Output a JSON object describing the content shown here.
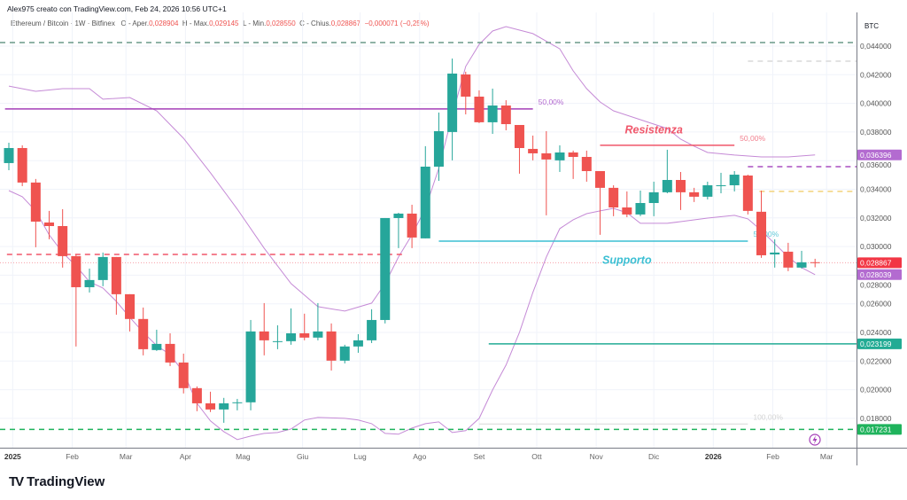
{
  "header": {
    "credit": "Alex975 creato con TradingView.com, Feb 24, 2026 10:56 UTC+1",
    "symbol": "Ethereum / Bitcoin · 1W · Bitfinex",
    "open_label": "O - Aper.",
    "open": "0,028904",
    "high_label": "H - Max.",
    "high": "0,029145",
    "low_label": "L - Min.",
    "low": "0,028550",
    "close_label": "C - Chius.",
    "close": "0,028867",
    "change": "−0,000071 (−0,25%)"
  },
  "logo": {
    "text": "TradingView"
  },
  "colors": {
    "up": "#26a69a",
    "down": "#ef5350",
    "band": "#c58ad6",
    "grid": "#f0f3fa"
  },
  "chart_data": {
    "type": "candlestick",
    "title": "",
    "currency_label": "BTC",
    "ylim": [
      0.0165,
      0.0455
    ],
    "y_ticks": [
      0.044,
      0.042,
      0.04,
      0.038,
      0.036,
      0.034,
      0.032,
      0.03,
      0.028,
      0.026,
      0.024,
      0.022,
      0.02,
      0.018
    ],
    "y_tick_labels": [
      "0,044000",
      "0,042000",
      "0,040000",
      "0,038000",
      "0,036000",
      "0,034000",
      "0,032000",
      "0,030000",
      "0,028000",
      "0,026000",
      "0,024000",
      "0,022000",
      "0,020000",
      "0,018000"
    ],
    "x_ticks": [
      {
        "date": "2025-01-01",
        "label": "2025",
        "bold": true
      },
      {
        "date": "2025-02-01",
        "label": "Feb"
      },
      {
        "date": "2025-03-01",
        "label": "Mar"
      },
      {
        "date": "2025-04-01",
        "label": "Apr"
      },
      {
        "date": "2025-05-01",
        "label": "Mag"
      },
      {
        "date": "2025-06-01",
        "label": "Giu"
      },
      {
        "date": "2025-07-01",
        "label": "Lug"
      },
      {
        "date": "2025-08-01",
        "label": "Ago"
      },
      {
        "date": "2025-09-01",
        "label": "Set"
      },
      {
        "date": "2025-10-01",
        "label": "Ott"
      },
      {
        "date": "2025-11-01",
        "label": "Nov"
      },
      {
        "date": "2025-12-01",
        "label": "Dic"
      },
      {
        "date": "2026-01-01",
        "label": "2026",
        "bold": true
      },
      {
        "date": "2026-02-01",
        "label": "Feb"
      },
      {
        "date": "2026-03-01",
        "label": "Mar"
      }
    ],
    "candles_fields": [
      "date",
      "open",
      "high",
      "low",
      "close"
    ],
    "candles": [
      [
        "2024-12-30",
        0.03583,
        0.03725,
        0.03533,
        0.03688
      ],
      [
        "2025-01-06",
        0.03688,
        0.03707,
        0.03422,
        0.03447
      ],
      [
        "2025-01-13",
        0.03447,
        0.03472,
        0.02995,
        0.03174
      ],
      [
        "2025-01-20",
        0.03168,
        0.03249,
        0.03051,
        0.03143
      ],
      [
        "2025-01-27",
        0.03143,
        0.03261,
        0.02853,
        0.02933
      ],
      [
        "2025-02-03",
        0.02933,
        0.02945,
        0.02302,
        0.02716
      ],
      [
        "2025-02-10",
        0.02716,
        0.02846,
        0.02679,
        0.02766
      ],
      [
        "2025-02-17",
        0.02766,
        0.02958,
        0.02723,
        0.02927
      ],
      [
        "2025-02-24",
        0.02927,
        0.02927,
        0.02524,
        0.02667
      ],
      [
        "2025-03-03",
        0.02667,
        0.02667,
        0.02407,
        0.02494
      ],
      [
        "2025-03-10",
        0.02494,
        0.02574,
        0.0224,
        0.02283
      ],
      [
        "2025-03-17",
        0.02277,
        0.02419,
        0.02271,
        0.0232
      ],
      [
        "2025-03-24",
        0.0232,
        0.02394,
        0.02165,
        0.0219
      ],
      [
        "2025-03-31",
        0.0219,
        0.02252,
        0.01974,
        0.02011
      ],
      [
        "2025-04-07",
        0.02011,
        0.02023,
        0.0185,
        0.01905
      ],
      [
        "2025-04-14",
        0.01905,
        0.01986,
        0.01844,
        0.01862
      ],
      [
        "2025-04-21",
        0.01862,
        0.01943,
        0.01769,
        0.01905
      ],
      [
        "2025-04-28",
        0.01909,
        0.01936,
        0.01856,
        0.01912
      ],
      [
        "2025-05-05",
        0.01912,
        0.02487,
        0.01856,
        0.02407
      ],
      [
        "2025-05-12",
        0.02407,
        0.02605,
        0.0224,
        0.02345
      ],
      [
        "2025-05-19",
        0.02339,
        0.0245,
        0.02283,
        0.02339
      ],
      [
        "2025-05-26",
        0.02339,
        0.02568,
        0.02314,
        0.02394
      ],
      [
        "2025-06-02",
        0.02394,
        0.02531,
        0.02345,
        0.02364
      ],
      [
        "2025-06-09",
        0.02364,
        0.02605,
        0.02345,
        0.02407
      ],
      [
        "2025-06-16",
        0.02407,
        0.02463,
        0.02134,
        0.02203
      ],
      [
        "2025-06-23",
        0.02203,
        0.02314,
        0.02184,
        0.02302
      ],
      [
        "2025-06-30",
        0.02302,
        0.02388,
        0.02258,
        0.02345
      ],
      [
        "2025-07-07",
        0.02345,
        0.02562,
        0.02326,
        0.02487
      ],
      [
        "2025-07-14",
        0.02487,
        0.03199,
        0.02463,
        0.03199
      ],
      [
        "2025-07-21",
        0.03199,
        0.03236,
        0.02989,
        0.0323
      ],
      [
        "2025-07-28",
        0.0323,
        0.03292,
        0.02989,
        0.03063
      ],
      [
        "2025-08-04",
        0.03057,
        0.03701,
        0.03057,
        0.03558
      ],
      [
        "2025-08-11",
        0.03558,
        0.03936,
        0.03459,
        0.03806
      ],
      [
        "2025-08-18",
        0.038,
        0.04313,
        0.03602,
        0.04208
      ],
      [
        "2025-08-25",
        0.04202,
        0.04221,
        0.03923,
        0.04047
      ],
      [
        "2025-09-01",
        0.04047,
        0.04091,
        0.03862,
        0.03868
      ],
      [
        "2025-09-08",
        0.03868,
        0.04103,
        0.03787,
        0.03985
      ],
      [
        "2025-09-15",
        0.03985,
        0.04022,
        0.03812,
        0.03855
      ],
      [
        "2025-09-22",
        0.03849,
        0.03849,
        0.03509,
        0.03688
      ],
      [
        "2025-09-29",
        0.03682,
        0.03775,
        0.03602,
        0.03651
      ],
      [
        "2025-10-06",
        0.03651,
        0.03806,
        0.03218,
        0.03608
      ],
      [
        "2025-10-13",
        0.03602,
        0.03707,
        0.03521,
        0.03657
      ],
      [
        "2025-10-20",
        0.03657,
        0.0367,
        0.03472,
        0.03626
      ],
      [
        "2025-10-27",
        0.03626,
        0.0367,
        0.03453,
        0.03527
      ],
      [
        "2025-11-03",
        0.03527,
        0.03527,
        0.03082,
        0.0341
      ],
      [
        "2025-11-10",
        0.0341,
        0.03428,
        0.03212,
        0.03273
      ],
      [
        "2025-11-17",
        0.03273,
        0.03385,
        0.03205,
        0.03224
      ],
      [
        "2025-11-24",
        0.03224,
        0.03391,
        0.03212,
        0.03304
      ],
      [
        "2025-12-01",
        0.03304,
        0.03453,
        0.03212,
        0.03379
      ],
      [
        "2025-12-08",
        0.03379,
        0.03676,
        0.03372,
        0.03465
      ],
      [
        "2025-12-15",
        0.03465,
        0.03521,
        0.03255,
        0.03379
      ],
      [
        "2025-12-22",
        0.03379,
        0.0341,
        0.03311,
        0.03348
      ],
      [
        "2025-12-29",
        0.03348,
        0.03453,
        0.03329,
        0.03428
      ],
      [
        "2026-01-05",
        0.03428,
        0.03515,
        0.03372,
        0.03428
      ],
      [
        "2026-01-12",
        0.03428,
        0.03527,
        0.03385,
        0.03502
      ],
      [
        "2026-01-19",
        0.03496,
        0.03502,
        0.03224,
        0.03249
      ],
      [
        "2026-01-26",
        0.03243,
        0.03391,
        0.02921,
        0.02939
      ],
      [
        "2026-02-02",
        0.02945,
        0.03051,
        0.02853,
        0.02958
      ],
      [
        "2026-02-09",
        0.02964,
        0.03026,
        0.02828,
        0.02853
      ],
      [
        "2026-02-16",
        0.02853,
        0.0297,
        0.02846,
        0.0289
      ],
      [
        "2026-02-23",
        0.028904,
        0.029145,
        0.02855,
        0.028867
      ]
    ],
    "bollinger_upper": [
      [
        "2024-12-30",
        0.04121
      ],
      [
        "2025-01-13",
        0.04084
      ],
      [
        "2025-01-27",
        0.04103
      ],
      [
        "2025-02-10",
        0.04103
      ],
      [
        "2025-02-17",
        0.04029
      ],
      [
        "2025-03-03",
        0.04041
      ],
      [
        "2025-03-17",
        0.03948
      ],
      [
        "2025-03-31",
        0.03756
      ],
      [
        "2025-04-14",
        0.03515
      ],
      [
        "2025-04-28",
        0.03261
      ],
      [
        "2025-05-12",
        0.02989
      ],
      [
        "2025-05-26",
        0.02741
      ],
      [
        "2025-06-09",
        0.0258
      ],
      [
        "2025-06-23",
        0.02549
      ],
      [
        "2025-07-07",
        0.02605
      ],
      [
        "2025-07-14",
        0.02741
      ],
      [
        "2025-07-21",
        0.02927
      ],
      [
        "2025-07-28",
        0.03082
      ],
      [
        "2025-08-04",
        0.03267
      ],
      [
        "2025-08-11",
        0.03546
      ],
      [
        "2025-08-18",
        0.03917
      ],
      [
        "2025-08-25",
        0.04258
      ],
      [
        "2025-09-01",
        0.04412
      ],
      [
        "2025-09-08",
        0.04505
      ],
      [
        "2025-09-15",
        0.04536
      ],
      [
        "2025-09-29",
        0.04487
      ],
      [
        "2025-10-13",
        0.04381
      ],
      [
        "2025-10-20",
        0.04227
      ],
      [
        "2025-10-27",
        0.04103
      ],
      [
        "2025-11-03",
        0.0401
      ],
      [
        "2025-11-10",
        0.03948
      ],
      [
        "2025-11-24",
        0.03886
      ],
      [
        "2025-12-08",
        0.03824
      ],
      [
        "2025-12-15",
        0.0375
      ],
      [
        "2025-12-22",
        0.03701
      ],
      [
        "2025-12-29",
        0.03657
      ],
      [
        "2026-01-12",
        0.03639
      ],
      [
        "2026-01-26",
        0.03626
      ],
      [
        "2026-02-09",
        0.03626
      ],
      [
        "2026-02-23",
        0.036396
      ]
    ],
    "bollinger_lower": [
      [
        "2024-12-30",
        0.03391
      ],
      [
        "2025-01-06",
        0.03348
      ],
      [
        "2025-01-13",
        0.03249
      ],
      [
        "2025-01-20",
        0.03082
      ],
      [
        "2025-01-27",
        0.02958
      ],
      [
        "2025-02-03",
        0.02865
      ],
      [
        "2025-02-10",
        0.02754
      ],
      [
        "2025-02-17",
        0.0271
      ],
      [
        "2025-02-24",
        0.02617
      ],
      [
        "2025-03-03",
        0.02506
      ],
      [
        "2025-03-10",
        0.02401
      ],
      [
        "2025-03-17",
        0.02308
      ],
      [
        "2025-03-24",
        0.02246
      ],
      [
        "2025-03-31",
        0.02122
      ],
      [
        "2025-04-07",
        0.01905
      ],
      [
        "2025-04-14",
        0.01782
      ],
      [
        "2025-04-21",
        0.01707
      ],
      [
        "2025-04-28",
        0.01652
      ],
      [
        "2025-05-05",
        0.01676
      ],
      [
        "2025-05-12",
        0.01695
      ],
      [
        "2025-05-19",
        0.01701
      ],
      [
        "2025-05-26",
        0.01726
      ],
      [
        "2025-06-02",
        0.01788
      ],
      [
        "2025-06-09",
        0.01806
      ],
      [
        "2025-06-23",
        0.018
      ],
      [
        "2025-06-30",
        0.01788
      ],
      [
        "2025-07-07",
        0.01763
      ],
      [
        "2025-07-14",
        0.01695
      ],
      [
        "2025-07-21",
        0.01689
      ],
      [
        "2025-07-28",
        0.01732
      ],
      [
        "2025-08-04",
        0.01763
      ],
      [
        "2025-08-11",
        0.01775
      ],
      [
        "2025-08-18",
        0.01701
      ],
      [
        "2025-08-25",
        0.01714
      ],
      [
        "2025-09-01",
        0.018
      ],
      [
        "2025-09-08",
        0.01998
      ],
      [
        "2025-09-15",
        0.02172
      ],
      [
        "2025-09-22",
        0.02401
      ],
      [
        "2025-09-29",
        0.02679
      ],
      [
        "2025-10-06",
        0.02927
      ],
      [
        "2025-10-13",
        0.03125
      ],
      [
        "2025-10-20",
        0.03187
      ],
      [
        "2025-10-27",
        0.0323
      ],
      [
        "2025-11-03",
        0.03249
      ],
      [
        "2025-11-10",
        0.03267
      ],
      [
        "2025-11-17",
        0.03236
      ],
      [
        "2025-11-24",
        0.03162
      ],
      [
        "2025-12-08",
        0.03162
      ],
      [
        "2025-12-15",
        0.03174
      ],
      [
        "2025-12-29",
        0.03199
      ],
      [
        "2026-01-12",
        0.03218
      ],
      [
        "2026-01-19",
        0.03193
      ],
      [
        "2026-01-26",
        0.03113
      ],
      [
        "2026-02-02",
        0.0302
      ],
      [
        "2026-02-09",
        0.02927
      ],
      [
        "2026-02-16",
        0.02853
      ],
      [
        "2026-02-23",
        0.028039
      ]
    ],
    "horizontal_lines": [
      {
        "price": 0.04425,
        "from": null,
        "to": null,
        "color": "#6a9a88",
        "style": "dashed"
      },
      {
        "price": 0.04295,
        "from": "2026-01-19",
        "to": null,
        "color": "#d9d9d9",
        "style": "dashed"
      },
      {
        "price": 0.03961,
        "from": "2024-12-28",
        "to": "2025-09-29",
        "color": "#a43fb8",
        "style": "solid",
        "label": "50,00%",
        "label_color": "#b36bd0"
      },
      {
        "price": 0.03707,
        "from": "2025-11-03",
        "to": "2026-01-12",
        "color": "#f0566a",
        "style": "solid",
        "label": "50,00%",
        "label_color": "#f2808f"
      },
      {
        "price": 0.03558,
        "from": "2026-01-19",
        "to": null,
        "color": "#a94fc0",
        "style": "dashed"
      },
      {
        "price": 0.03385,
        "from": "2026-01-25",
        "to": null,
        "color": "#f2d27a",
        "style": "dashed"
      },
      {
        "price": 0.03038,
        "from": "2025-08-11",
        "to": "2026-01-19",
        "color": "#3bbfd3",
        "style": "solid",
        "label": "50,00%",
        "label_color": "#62c8d8"
      },
      {
        "price": 0.02945,
        "from": "2024-12-29",
        "to": "2025-07-25",
        "color": "#f0566a",
        "style": "dashed"
      },
      {
        "price": 0.028867,
        "from": null,
        "to": null,
        "color": "#f7a1a8",
        "style": "dotted"
      },
      {
        "price": 0.023199,
        "from": "2025-09-06",
        "to": null,
        "color": "#22ab94",
        "style": "solid"
      },
      {
        "price": 0.0176,
        "from": "2025-09-01",
        "to": "2026-01-19",
        "color": "#e3e3e3",
        "style": "solid",
        "label": "100,00%",
        "label_color": "#d4d4d4"
      },
      {
        "price": 0.017231,
        "from": null,
        "to": null,
        "color": "#1fb35c",
        "style": "dashed"
      }
    ],
    "annotations": [
      {
        "text": "Resistenza",
        "date": "2025-12-01",
        "price": 0.0379,
        "color": "#f0566a"
      },
      {
        "text": "Supporto",
        "date": "2025-11-17",
        "price": 0.0288,
        "color": "#3bbfd3"
      }
    ],
    "price_labels": [
      {
        "price": 0.036396,
        "text": "0,036396",
        "color": "#b36bd0"
      },
      {
        "price": 0.028867,
        "text": "0,028867",
        "color": "#f23645"
      },
      {
        "price": 0.028039,
        "text": "0,028039",
        "color": "#b36bd0"
      },
      {
        "price": 0.023199,
        "text": "0,023199",
        "color": "#22ab94"
      },
      {
        "price": 0.017231,
        "text": "0,017231",
        "color": "#1fb35c"
      }
    ],
    "icons": {
      "alert": "lightning-icon"
    }
  }
}
